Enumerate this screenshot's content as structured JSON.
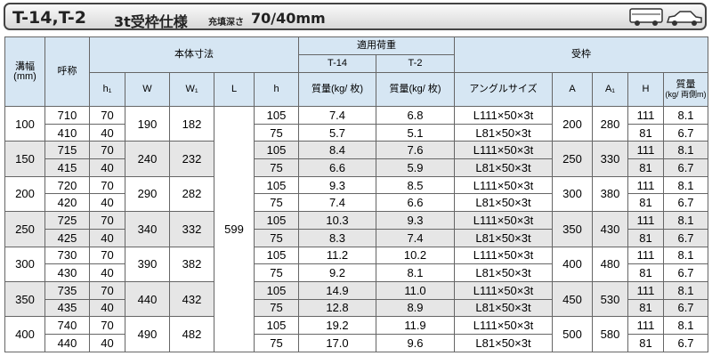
{
  "header": {
    "model": "T-14,T-2",
    "spec": "3t受枠仕様",
    "depth_label": "充填深さ",
    "depth": "70/40mm"
  },
  "table": {
    "head": {
      "width": [
        "溝幅",
        "(mm)"
      ],
      "nominal": "呼称",
      "body": "本体寸法",
      "load": "適用荷重",
      "frame": "受枠",
      "t14": "T-14",
      "t2": "T-2",
      "h1": "h₁",
      "w": "W",
      "w1": "W₁",
      "l": "L",
      "h": "h",
      "mass_t14": "質量(kg/ 枚)",
      "mass_t2": "質量(kg/ 枚)",
      "angle": "アングルサイズ",
      "a": "A",
      "a1": "A₁",
      "hh": "H",
      "mass_frame": [
        "質量",
        "(kg/ 両側m)"
      ]
    },
    "L": "599",
    "groups": [
      {
        "width": "100",
        "nominal": [
          "710",
          "410"
        ],
        "h1": [
          "70",
          "40"
        ],
        "W": "190",
        "W1": "182",
        "h": [
          "105",
          "75"
        ],
        "t14": [
          "7.4",
          "5.7"
        ],
        "t2": [
          "6.8",
          "5.1"
        ],
        "angle": [
          "L111×50×3t",
          "L81×50×3t"
        ],
        "A": "200",
        "A1": "280",
        "H": [
          "111",
          "81"
        ],
        "mass": [
          "8.1",
          "6.7"
        ]
      },
      {
        "width": "150",
        "nominal": [
          "715",
          "415"
        ],
        "h1": [
          "70",
          "40"
        ],
        "W": "240",
        "W1": "232",
        "h": [
          "105",
          "75"
        ],
        "t14": [
          "8.4",
          "6.6"
        ],
        "t2": [
          "7.6",
          "5.9"
        ],
        "angle": [
          "L111×50×3t",
          "L81×50×3t"
        ],
        "A": "250",
        "A1": "330",
        "H": [
          "111",
          "81"
        ],
        "mass": [
          "8.1",
          "6.7"
        ]
      },
      {
        "width": "200",
        "nominal": [
          "720",
          "420"
        ],
        "h1": [
          "70",
          "40"
        ],
        "W": "290",
        "W1": "282",
        "h": [
          "105",
          "75"
        ],
        "t14": [
          "9.3",
          "7.4"
        ],
        "t2": [
          "8.5",
          "6.6"
        ],
        "angle": [
          "L111×50×3t",
          "L81×50×3t"
        ],
        "A": "300",
        "A1": "380",
        "H": [
          "111",
          "81"
        ],
        "mass": [
          "8.1",
          "6.7"
        ]
      },
      {
        "width": "250",
        "nominal": [
          "725",
          "425"
        ],
        "h1": [
          "70",
          "40"
        ],
        "W": "340",
        "W1": "332",
        "h": [
          "105",
          "75"
        ],
        "t14": [
          "10.3",
          "8.3"
        ],
        "t2": [
          "9.3",
          "7.4"
        ],
        "angle": [
          "L111×50×3t",
          "L81×50×3t"
        ],
        "A": "350",
        "A1": "430",
        "H": [
          "111",
          "81"
        ],
        "mass": [
          "8.1",
          "6.7"
        ]
      },
      {
        "width": "300",
        "nominal": [
          "730",
          "430"
        ],
        "h1": [
          "70",
          "40"
        ],
        "W": "390",
        "W1": "382",
        "h": [
          "105",
          "75"
        ],
        "t14": [
          "11.2",
          "9.2"
        ],
        "t2": [
          "10.2",
          "8.1"
        ],
        "angle": [
          "L111×50×3t",
          "L81×50×3t"
        ],
        "A": "400",
        "A1": "480",
        "H": [
          "111",
          "81"
        ],
        "mass": [
          "8.1",
          "6.7"
        ]
      },
      {
        "width": "350",
        "nominal": [
          "735",
          "435"
        ],
        "h1": [
          "70",
          "40"
        ],
        "W": "440",
        "W1": "432",
        "h": [
          "105",
          "75"
        ],
        "t14": [
          "14.9",
          "12.8"
        ],
        "t2": [
          "11.0",
          "8.9"
        ],
        "angle": [
          "L111×50×3t",
          "L81×50×3t"
        ],
        "A": "450",
        "A1": "530",
        "H": [
          "111",
          "81"
        ],
        "mass": [
          "8.1",
          "6.7"
        ]
      },
      {
        "width": "400",
        "nominal": [
          "740",
          "440"
        ],
        "h1": [
          "70",
          "40"
        ],
        "W": "490",
        "W1": "482",
        "h": [
          "105",
          "75"
        ],
        "t14": [
          "19.2",
          "17.0"
        ],
        "t2": [
          "11.9",
          "9.6"
        ],
        "angle": [
          "L111×50×3t",
          "L81×50×3t"
        ],
        "A": "500",
        "A1": "580",
        "H": [
          "111",
          "81"
        ],
        "mass": [
          "8.1",
          "6.7"
        ]
      }
    ]
  }
}
